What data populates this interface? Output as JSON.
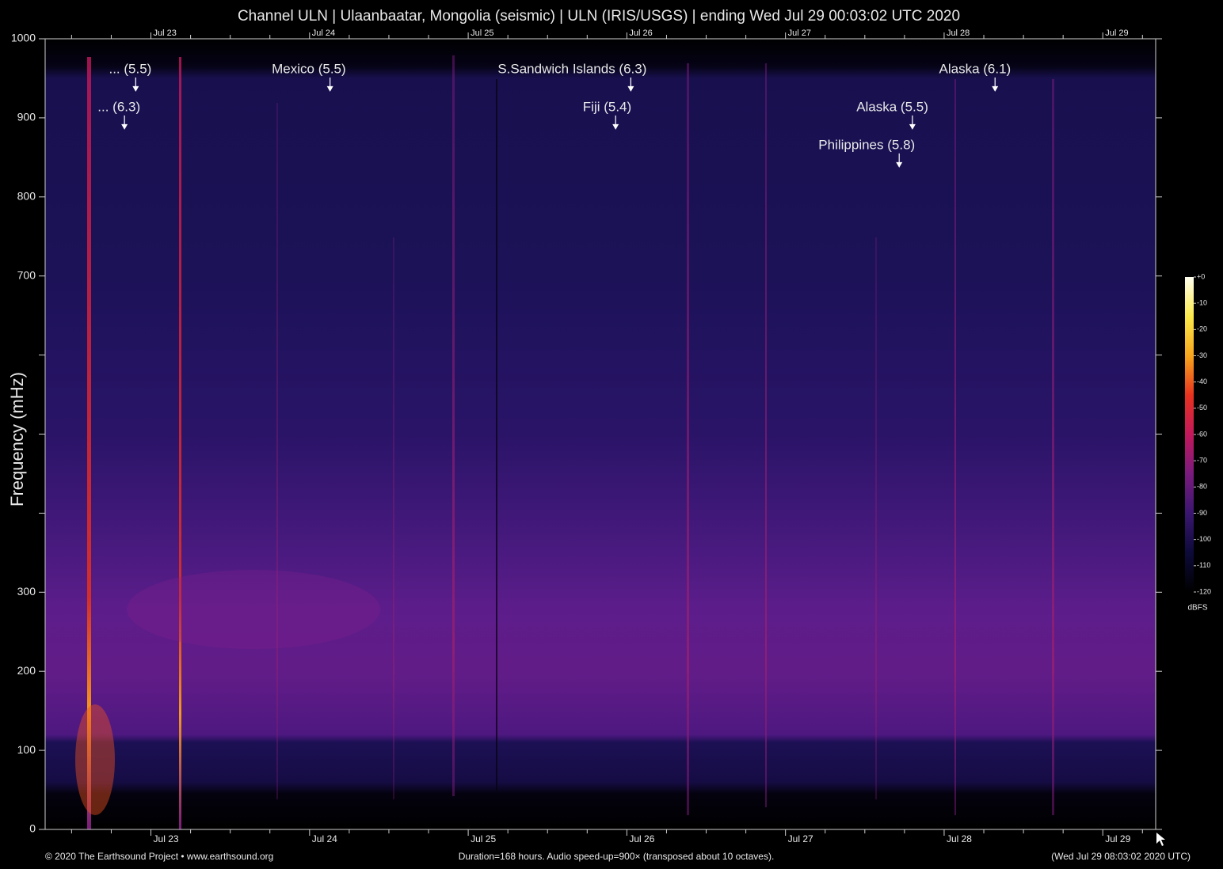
{
  "chart_data": {
    "type": "spectrogram",
    "title": "Channel ULN | Ulaanbaatar, Mongolia (seismic) | ULN (IRIS/USGS) | ending Wed Jul 29 00:03:02 UTC 2020",
    "ylabel": "Frequency (mHz)",
    "ylim": [
      0,
      1000
    ],
    "yticks": [
      0,
      100,
      200,
      300,
      700,
      800,
      900,
      1000
    ],
    "yminor": [
      400,
      500,
      600
    ],
    "xlim": [
      0,
      168
    ],
    "xticks": [
      {
        "value": 16,
        "label": "Jul 23"
      },
      {
        "value": 40,
        "label": "Jul 24"
      },
      {
        "value": 64,
        "label": "Jul 25"
      },
      {
        "value": 88,
        "label": "Jul 26"
      },
      {
        "value": 112,
        "label": "Jul 27"
      },
      {
        "value": 136,
        "label": "Jul 28"
      },
      {
        "value": 160,
        "label": "Jul 29"
      }
    ],
    "xminor": [
      4,
      10,
      22,
      28,
      34,
      46,
      52,
      58,
      70,
      76,
      82,
      94,
      100,
      106,
      118,
      124,
      130,
      142,
      148,
      154,
      166
    ],
    "annotations": [
      {
        "label": "... (5.5)",
        "x": 13.7,
        "y": 933
      },
      {
        "label": "... (6.3)",
        "x": 12.0,
        "y": 885
      },
      {
        "label": "Mexico (5.5)",
        "x": 43.1,
        "y": 933
      },
      {
        "label": "S.Sandwich Islands (6.3)",
        "x": 88.6,
        "y": 933
      },
      {
        "label": "Fiji (5.4)",
        "x": 86.3,
        "y": 885
      },
      {
        "label": "Alaska (6.1)",
        "x": 143.7,
        "y": 933
      },
      {
        "label": "Alaska (5.5)",
        "x": 131.2,
        "y": 885
      },
      {
        "label": "Philippines (5.8)",
        "x": 129.2,
        "y": 837
      }
    ],
    "colorbar": {
      "label": "dBFS",
      "lim": [
        -120,
        0
      ],
      "ticks": [
        {
          "value": 0,
          "label": "+0"
        },
        -10,
        -20,
        -30,
        -40,
        -50,
        -60,
        -70,
        -80,
        -90,
        -100,
        -110,
        -120
      ],
      "colormap": [
        "#000000",
        "#0d0a3a",
        "#3a1670",
        "#7a1a7e",
        "#c2185b",
        "#e8321e",
        "#f7a51c",
        "#fbe94a",
        "#fffff0"
      ]
    },
    "footer_left": "© 2020 The Earthsound Project • www.earthsound.org",
    "footer_center": "Duration=168 hours. Audio speed-up=900× (transposed about 10 octaves).",
    "footer_right": "(Wed Jul 29 08:03:02 2020 UTC)"
  }
}
